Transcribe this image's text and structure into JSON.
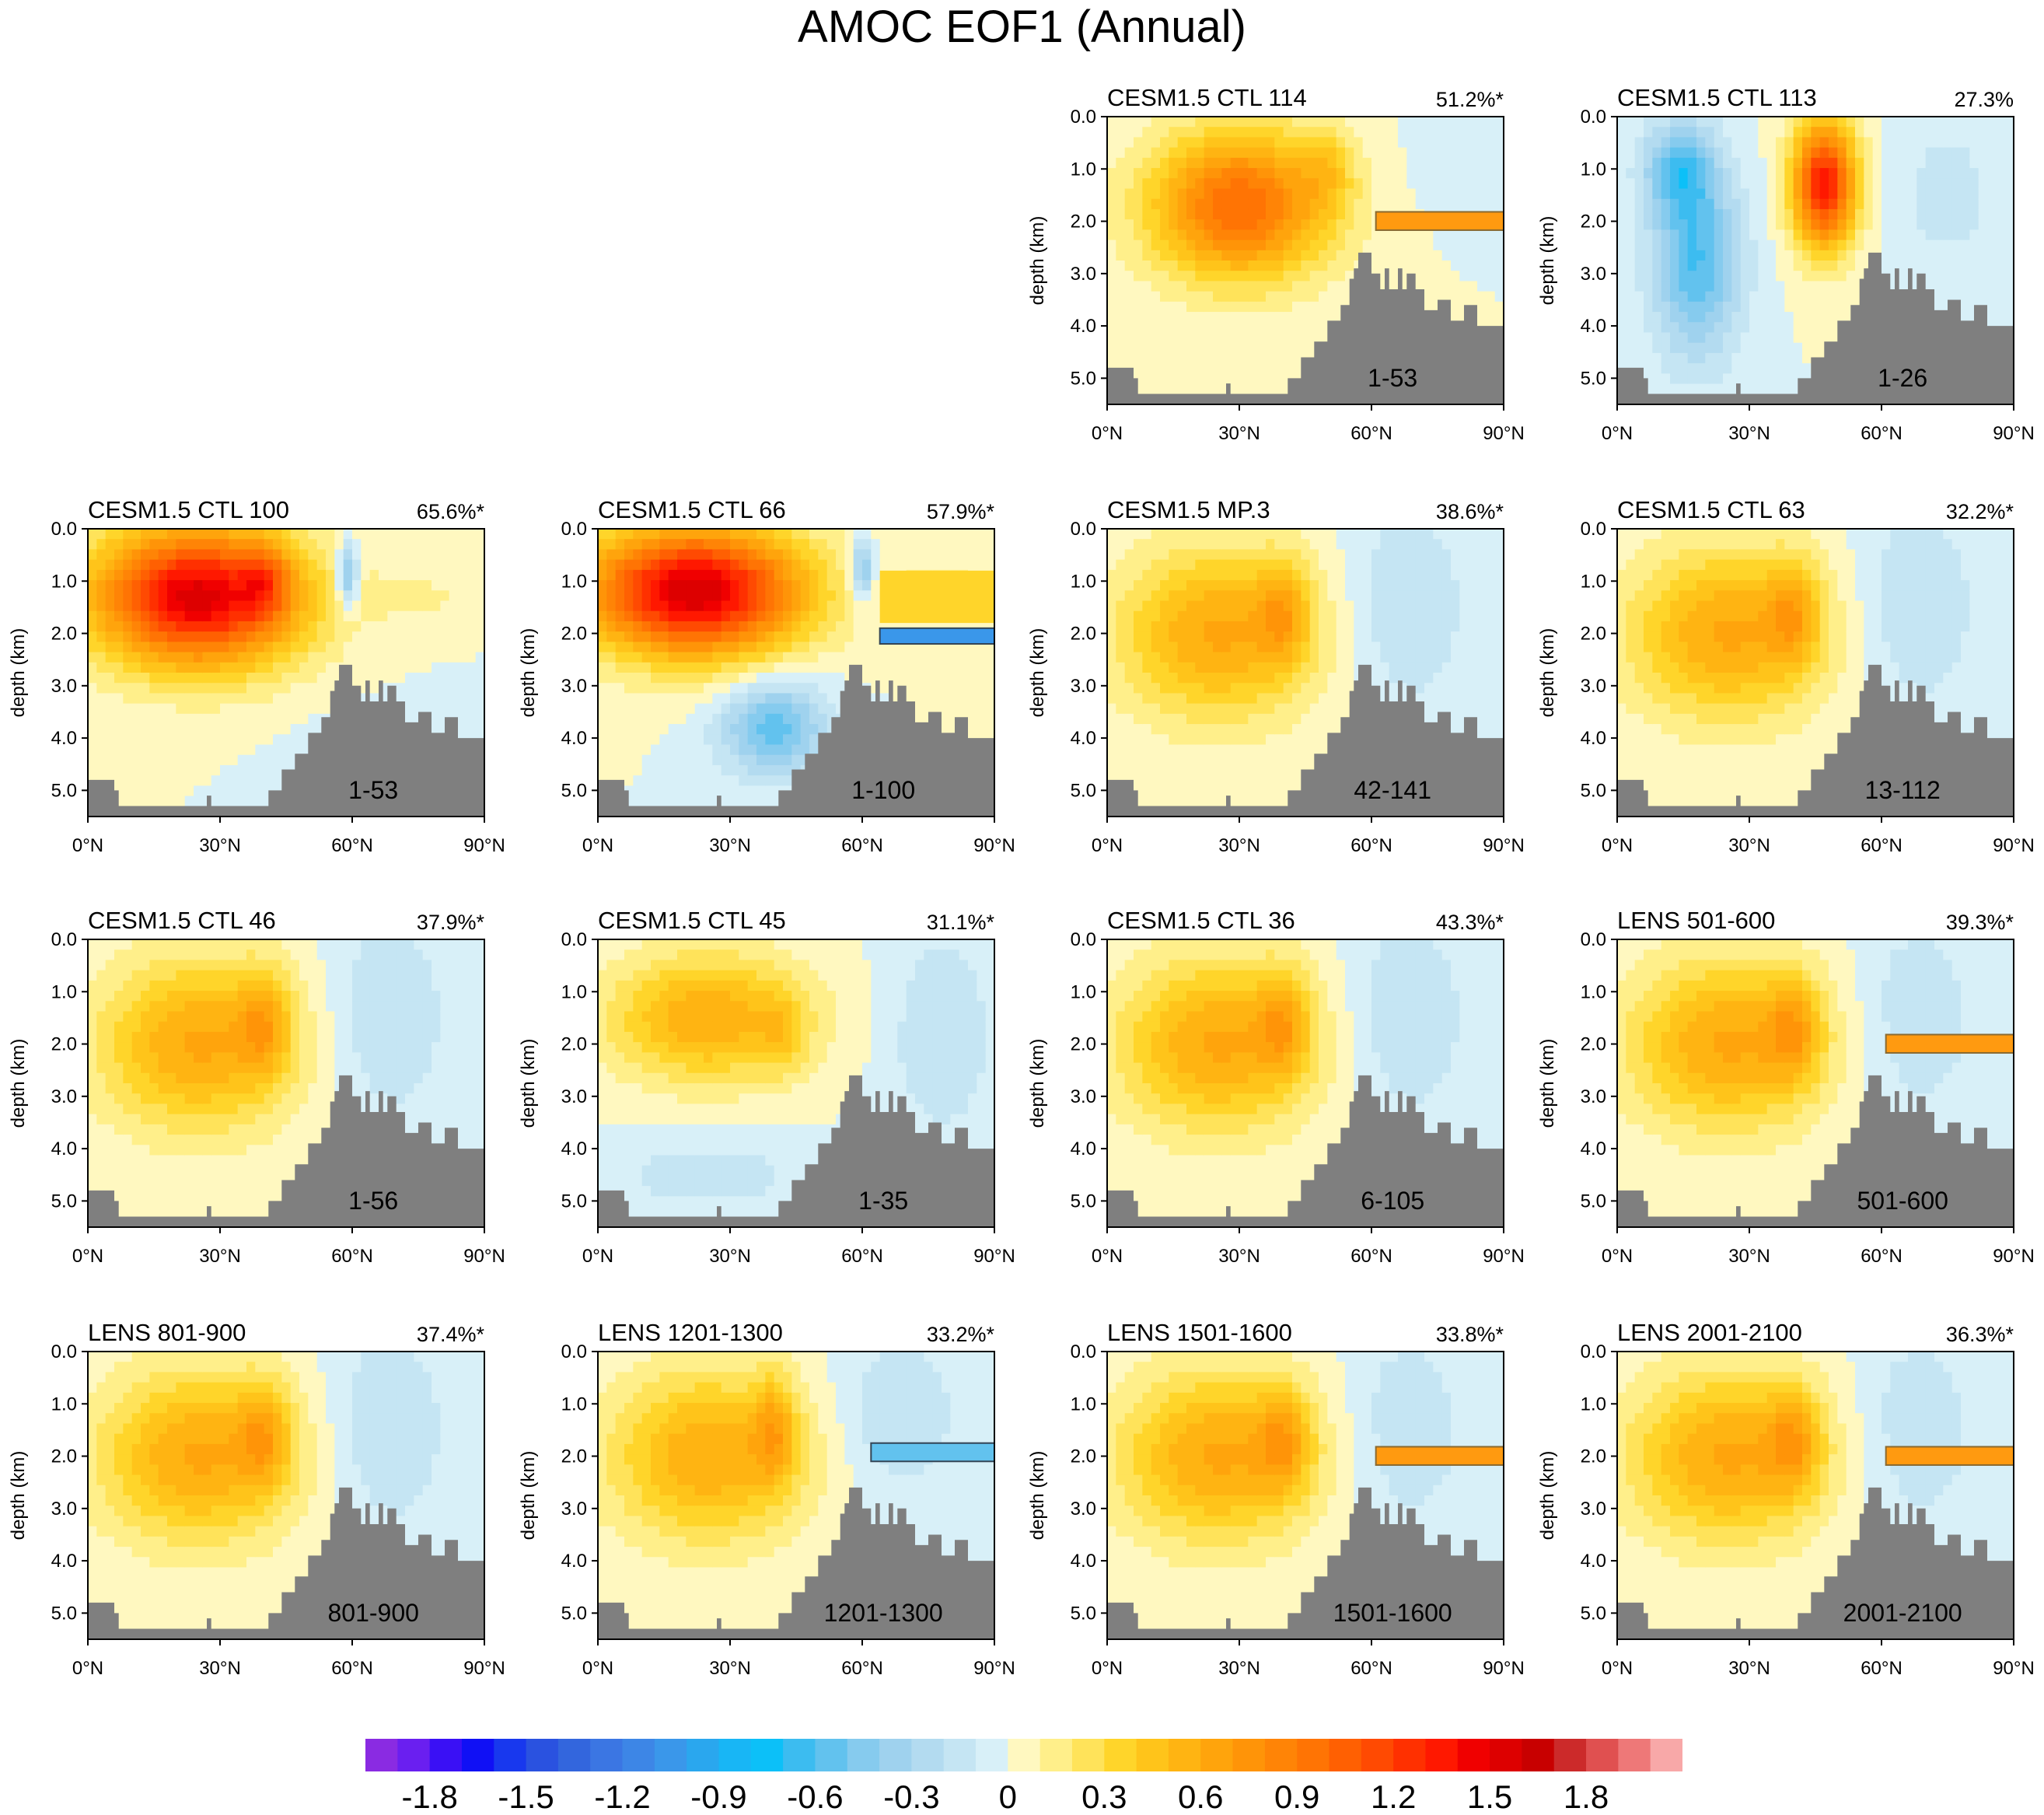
{
  "title": "AMOC EOF1 (Annual)",
  "panels": [
    {
      "label": "CESM1.5 CTL 114",
      "variance": "51.2%*",
      "years": "1-53",
      "pattern": "box"
    },
    {
      "label": "CESM1.5 CTL 113",
      "variance": "27.3%",
      "years": "1-26",
      "pattern": "dipole"
    },
    {
      "label": "CESM1.5 CTL 100",
      "variance": "65.6%*",
      "years": "1-53",
      "pattern": "strong"
    },
    {
      "label": "CESM1.5 CTL 66",
      "variance": "57.9%*",
      "years": "1-100",
      "pattern": "strong-deepneg"
    },
    {
      "label": "CESM1.5 MP.3",
      "variance": "38.6%*",
      "years": "42-141",
      "pattern": "moderate"
    },
    {
      "label": "CESM1.5 CTL 63",
      "variance": "32.2%*",
      "years": "13-112",
      "pattern": "moderate"
    },
    {
      "label": "CESM1.5 CTL 46",
      "variance": "37.9%*",
      "years": "1-56",
      "pattern": "moderate"
    },
    {
      "label": "CESM1.5 CTL 45",
      "variance": "31.1%*",
      "years": "1-35",
      "pattern": "weak-deepneg"
    },
    {
      "label": "CESM1.5 CTL 36",
      "variance": "43.3%*",
      "years": "6-105",
      "pattern": "moderate"
    },
    {
      "label": "LENS 501-600",
      "variance": "39.3%*",
      "years": "501-600",
      "pattern": "moderate-band"
    },
    {
      "label": "LENS 801-900",
      "variance": "37.4%*",
      "years": "801-900",
      "pattern": "moderate"
    },
    {
      "label": "LENS 1201-1300",
      "variance": "33.2%*",
      "years": "1201-1300",
      "pattern": "moderate-negband"
    },
    {
      "label": "LENS 1501-1600",
      "variance": "33.8%*",
      "years": "1501-1600",
      "pattern": "moderate-band"
    },
    {
      "label": "LENS 2001-2100",
      "variance": "36.3%*",
      "years": "2001-2100",
      "pattern": "moderate-band"
    }
  ],
  "chart_data": {
    "type": "heatmap",
    "title": "AMOC EOF1 (Annual)",
    "xlabel": "",
    "ylabel": "depth (km)",
    "xlim": [
      0,
      90
    ],
    "ylim": [
      0.0,
      5.5
    ],
    "x_ticks": [
      "0°N",
      "30°N",
      "60°N",
      "90°N"
    ],
    "x_tick_values": [
      0,
      30,
      60,
      90
    ],
    "y_ticks": [
      "0.0",
      "1.0",
      "2.0",
      "3.0",
      "4.0",
      "5.0"
    ],
    "y_tick_values": [
      0,
      1,
      2,
      3,
      4,
      5
    ],
    "colorbar": {
      "levels": [
        -2.0,
        -1.9,
        -1.8,
        -1.7,
        -1.6,
        -1.5,
        -1.4,
        -1.3,
        -1.2,
        -1.1,
        -1.0,
        -0.9,
        -0.8,
        -0.7,
        -0.6,
        -0.5,
        -0.4,
        -0.3,
        -0.2,
        -0.1,
        0.0,
        0.1,
        0.2,
        0.3,
        0.4,
        0.5,
        0.6,
        0.7,
        0.8,
        0.9,
        1.0,
        1.1,
        1.2,
        1.3,
        1.4,
        1.5,
        1.6,
        1.7,
        1.8,
        1.9,
        2.0
      ],
      "labels": [
        "-1.8",
        "-1.5",
        "-1.2",
        "-0.9",
        "-0.6",
        "-0.3",
        "0",
        "0.3",
        "0.6",
        "0.9",
        "1.2",
        "1.5",
        "1.8"
      ],
      "label_values": [
        -1.8,
        -1.5,
        -1.2,
        -0.9,
        -0.6,
        -0.3,
        0,
        0.3,
        0.6,
        0.9,
        1.2,
        1.5,
        1.8
      ],
      "colors": [
        "#8a2be2",
        "#6a1ff0",
        "#3a10f5",
        "#1010f5",
        "#1838ee",
        "#2a52e0",
        "#3366dd",
        "#3b76e3",
        "#3d86e6",
        "#3a97ea",
        "#2aa7ee",
        "#18b6f5",
        "#0cc0f8",
        "#3cbcf0",
        "#62c2ee",
        "#86cbee",
        "#9fd2ee",
        "#b3dbf0",
        "#c5e5f3",
        "#d8f0f8",
        "#fff8c0",
        "#ffef8a",
        "#ffe35a",
        "#ffd52a",
        "#ffc41a",
        "#ffb412",
        "#ffa40c",
        "#ff9408",
        "#ff8406",
        "#ff7404",
        "#ff6002",
        "#ff4a02",
        "#ff3000",
        "#ff1800",
        "#f00000",
        "#dd0000",
        "#c80000",
        "#cc2a2a",
        "#e05050",
        "#ee7878",
        "#f8a8a8"
      ]
    },
    "topography_km": [
      [
        0,
        4.8
      ],
      [
        5,
        4.8
      ],
      [
        6,
        5.0
      ],
      [
        7,
        5.3
      ],
      [
        26,
        5.3
      ],
      [
        27,
        5.1
      ],
      [
        28,
        5.3
      ],
      [
        40,
        5.3
      ],
      [
        41,
        5.0
      ],
      [
        44,
        4.6
      ],
      [
        47,
        4.3
      ],
      [
        50,
        3.9
      ],
      [
        53,
        3.6
      ],
      [
        55,
        3.1
      ],
      [
        56,
        2.9
      ],
      [
        57,
        2.6
      ],
      [
        60,
        3.0
      ],
      [
        62,
        3.3
      ],
      [
        63,
        2.9
      ],
      [
        64,
        3.3
      ],
      [
        66,
        2.9
      ],
      [
        67,
        3.3
      ],
      [
        68,
        3.0
      ],
      [
        70,
        3.3
      ],
      [
        72,
        3.7
      ],
      [
        75,
        3.5
      ],
      [
        78,
        3.9
      ],
      [
        81,
        3.6
      ],
      [
        84,
        4.0
      ],
      [
        90,
        4.0
      ]
    ]
  }
}
